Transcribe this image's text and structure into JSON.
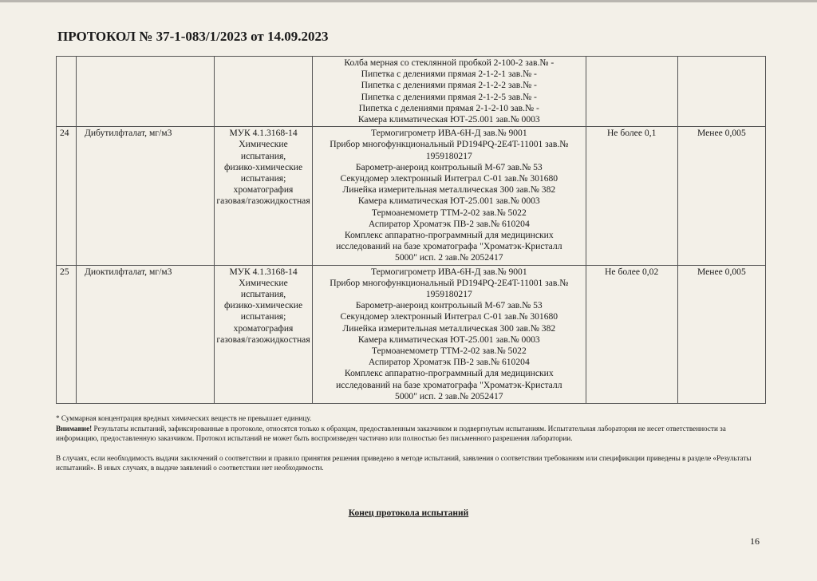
{
  "header": {
    "title": "ПРОТОКОЛ № 37-1-083/1/2023 от 14.09.2023"
  },
  "table": {
    "rows": [
      {
        "num": "",
        "name": "",
        "method": [],
        "equipment": [
          "Колба мерная со стеклянной пробкой 2-100-2 зав.№ -",
          "Пипетка с делениями прямая 2-1-2-1 зав.№ -",
          "Пипетка с делениями прямая 2-1-2-2 зав.№ -",
          "Пипетка с делениями прямая 2-1-2-5 зав.№ -",
          "Пипетка с делениями прямая 2-1-2-10 зав.№ -",
          "Камера климатическая ЮТ-25.001 зав.№ 0003"
        ],
        "norm": "",
        "result": ""
      },
      {
        "num": "24",
        "name": "Дибутилфталат, мг/м3",
        "method": [
          "МУК 4.1.3168-14",
          "Химические",
          "испытания,",
          "физико-химические",
          "испытания;",
          "хроматография",
          "газовая/газожидкостная"
        ],
        "equipment": [
          "Термогигрометр ИВА-6Н-Д зав.№ 9001",
          "Прибор многофункциональный PD194PQ-2E4T-11001 зав.№",
          "1959180217",
          "Барометр-анероид контрольный М-67 зав.№ 53",
          "Секундомер электронный Интеграл С-01 зав.№ 301680",
          "Линейка измерительная металлическая 300 зав.№ 382",
          "Камера климатическая ЮТ-25.001 зав.№ 0003",
          "Термоанемометр ТТМ-2-02 зав.№ 5022",
          "Аспиратор Хроматэк ПВ-2 зав.№ 610204",
          "Комплекс аппаратно-программный для медицинских",
          "исследований на базе хроматографа \"Хроматэк-Кристалл",
          "5000\" исп. 2 зав.№ 2052417"
        ],
        "norm": "Не более 0,1",
        "result": "Менее 0,005"
      },
      {
        "num": "25",
        "name": "Диоктилфталат, мг/м3",
        "method": [
          "МУК 4.1.3168-14",
          "Химические",
          "испытания,",
          "физико-химические",
          "испытания;",
          "хроматография",
          "газовая/газожидкостная"
        ],
        "equipment": [
          "Термогигрометр ИВА-6Н-Д зав.№ 9001",
          "Прибор многофункциональный PD194PQ-2E4T-11001 зав.№",
          "1959180217",
          "Барометр-анероид контрольный М-67 зав.№ 53",
          "Секундомер электронный Интеграл С-01 зав.№ 301680",
          "Линейка измерительная металлическая 300 зав.№ 382",
          "Камера климатическая ЮТ-25.001 зав.№ 0003",
          "Термоанемометр ТТМ-2-02 зав.№ 5022",
          "Аспиратор Хроматэк ПВ-2 зав.№ 610204",
          "Комплекс аппаратно-программный для медицинских",
          "исследований на базе хроматографа \"Хроматэк-Кристалл",
          "5000\" исп. 2 зав.№ 2052417"
        ],
        "norm": "Не более 0,02",
        "result": "Менее 0,005"
      }
    ]
  },
  "notes": {
    "footnote": "* Суммарная концентрация вредных химических веществ не превышает единицу.",
    "attention_label": "Внимание!",
    "attention_text": " Результаты испытаний, зафиксированные в протоколе, относятся только к образцам, предоставленным заказчиком и подвергнутым испытаниям. Испытательная лаборатория не несет ответственности за информацию, предоставленную заказчиком. Протокол испытаний не может быть воспроизведен частично или полностью без письменного разрешения лаборатории.",
    "conformity": "В случаях, если необходимость выдачи заключений о соответствии и правило принятия решения приведено в методе испытаний, заявления о соответствии требованиям или спецификации приведены в разделе «Результаты испытаний». В иных случаях, в выдаче заявлений о соответствии нет необходимости."
  },
  "footer": {
    "end_label": "Конец протокола испытаний",
    "page_number": "16"
  }
}
